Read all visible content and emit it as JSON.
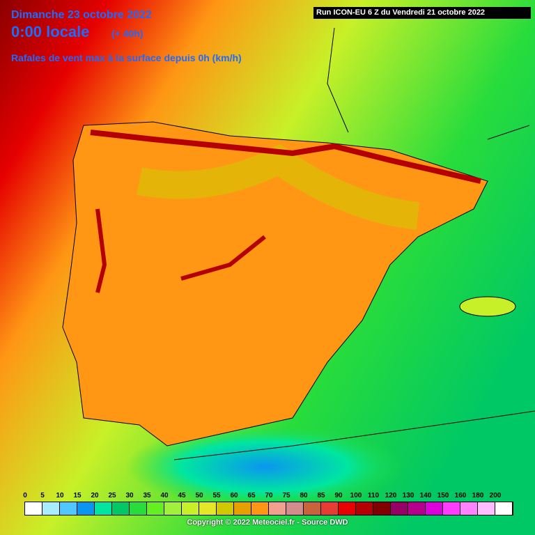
{
  "header": {
    "date": "Dimanche 23 octobre 2022",
    "time": "0:00 locale",
    "lead": "(+ 40h)",
    "parameter": "Rafales de vent max à la surface depuis 0h (km/h)",
    "run": "Run ICON-EU 6 Z du Vendredi 21 octobre 2022"
  },
  "legend": {
    "items": [
      {
        "label": "0",
        "color": "#ffffff"
      },
      {
        "label": "5",
        "color": "#a8ecff"
      },
      {
        "label": "10",
        "color": "#50c8ff"
      },
      {
        "label": "15",
        "color": "#0a96f0"
      },
      {
        "label": "20",
        "color": "#00e6a0"
      },
      {
        "label": "25",
        "color": "#00c864"
      },
      {
        "label": "30",
        "color": "#28dc3c"
      },
      {
        "label": "35",
        "color": "#64f020"
      },
      {
        "label": "40",
        "color": "#a0f03c"
      },
      {
        "label": "45",
        "color": "#c8f028"
      },
      {
        "label": "50",
        "color": "#e6e628"
      },
      {
        "label": "55",
        "color": "#d2c800"
      },
      {
        "label": "60",
        "color": "#e6a000"
      },
      {
        "label": "65",
        "color": "#ff9614"
      },
      {
        "label": "70",
        "color": "#f0a08c"
      },
      {
        "label": "75",
        "color": "#d28c8c"
      },
      {
        "label": "80",
        "color": "#c8643c"
      },
      {
        "label": "85",
        "color": "#e63c32"
      },
      {
        "label": "90",
        "color": "#e60000"
      },
      {
        "label": "100",
        "color": "#b40000"
      },
      {
        "label": "110",
        "color": "#800000"
      },
      {
        "label": "120",
        "color": "#960064"
      },
      {
        "label": "130",
        "color": "#b4008c"
      },
      {
        "label": "140",
        "color": "#dc00dc"
      },
      {
        "label": "150",
        "color": "#ff3cff"
      },
      {
        "label": "160",
        "color": "#ff82ff"
      },
      {
        "label": "180",
        "color": "#ffbeff"
      },
      {
        "label": "200",
        "color": "#ffffff"
      }
    ]
  },
  "footer": {
    "copyright": "Copyright © 2022 Meteociel.fr - Source DWD"
  }
}
